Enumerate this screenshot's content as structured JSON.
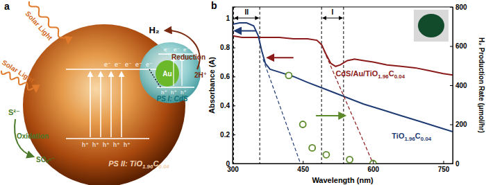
{
  "diagram": {
    "panel_label": "a",
    "light": [
      "Solar Light",
      "Solar Light"
    ],
    "product": "H₂",
    "reduction": "Reduction",
    "proton": "2H⁺",
    "ps1": "PS I: CdS",
    "ps2": "PS II: TiO1.96C0.04",
    "metal": "Au",
    "reactant": "S²⁻",
    "oxidation": "Oxidation",
    "oxidized": "SOₓⁿ⁻",
    "electrons_large": [
      "e⁻",
      "e⁻",
      "e⁻",
      "e⁻",
      "e⁻"
    ],
    "holes_large": [
      "h⁺",
      "h⁺",
      "h⁺",
      "h⁺",
      "h⁺"
    ],
    "electrons_small": [
      "e⁻",
      "e⁻",
      "e⁻"
    ],
    "holes_small": [
      "h⁺",
      "h⁺",
      "h⁺"
    ]
  },
  "chart_data": {
    "type": "line",
    "panel_label": "b",
    "x_label": "Wavelength (nm)",
    "y_label": "Absorbance (A)",
    "y2_label": "H₂ Production Rate (μmol/hr)",
    "xlim": [
      300,
      770
    ],
    "xticks": [
      300,
      450,
      600,
      750
    ],
    "ylim": [
      0,
      1.08
    ],
    "yticks": [
      0,
      0.2,
      0.4,
      0.6,
      0.8,
      1
    ],
    "y2lim": [
      0,
      800
    ],
    "y2ticks": [
      0,
      200,
      400,
      600,
      800
    ],
    "grid": false,
    "regions": [
      {
        "label": "II",
        "x": [
          302,
          358
        ]
      },
      {
        "label": "I",
        "x": [
          490,
          537
        ]
      }
    ],
    "series": [
      {
        "name": "CdS/Au/TiO1.96C0.04",
        "type": "line",
        "color": "#8b1a1a",
        "line_style": "solid",
        "x": [
          300,
          320,
          340,
          360,
          380,
          400,
          430,
          460,
          480,
          490,
          500,
          510,
          520,
          530,
          545,
          560,
          580,
          600,
          630,
          660,
          690,
          720,
          750,
          770
        ],
        "values": [
          0.88,
          0.87,
          0.87,
          0.87,
          0.87,
          0.87,
          0.86,
          0.86,
          0.85,
          0.82,
          0.75,
          0.69,
          0.67,
          0.68,
          0.71,
          0.72,
          0.71,
          0.7,
          0.68,
          0.67,
          0.66,
          0.64,
          0.62,
          0.61
        ]
      },
      {
        "name": "TiO1.96C0.04",
        "type": "line",
        "color": "#1f3b73",
        "line_style": "solid",
        "x": [
          300,
          315,
          330,
          345,
          355,
          362,
          370,
          380,
          400,
          430,
          460,
          500,
          540,
          580,
          620,
          660,
          700,
          740,
          770
        ],
        "values": [
          0.96,
          0.97,
          0.97,
          0.95,
          0.88,
          0.78,
          0.69,
          0.65,
          0.63,
          0.6,
          0.56,
          0.51,
          0.46,
          0.41,
          0.37,
          0.33,
          0.29,
          0.25,
          0.22
        ]
      },
      {
        "type": "line",
        "color": "#8b1a1a",
        "line_style": "dashed",
        "x": [
          495,
          600
        ],
        "values": [
          0.78,
          0
        ]
      },
      {
        "type": "line",
        "color": "#1f3b73",
        "line_style": "dashed",
        "x": [
          365,
          445
        ],
        "values": [
          0.72,
          0
        ]
      },
      {
        "type": "scatter",
        "axis": "y2",
        "color": "#5c8a2b",
        "marker": "circle",
        "x": [
          420,
          450,
          470,
          500,
          550,
          600
        ],
        "values": [
          450,
          200,
          80,
          45,
          20,
          0
        ]
      }
    ]
  }
}
